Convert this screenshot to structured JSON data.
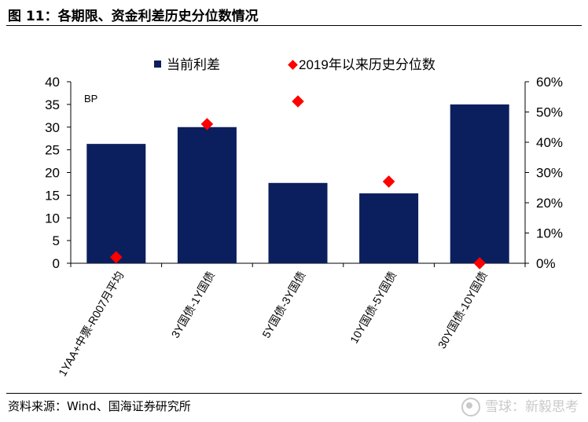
{
  "figure": {
    "title": "图 11：各期限、资金利差历史分位数情况",
    "source": "资料来源：Wind、国海证券研究所",
    "watermark": "雪球：新毅思考"
  },
  "colors": {
    "bar": "#0b1f5e",
    "marker": "#ff0000",
    "axis": "#000000"
  },
  "chart_data": {
    "type": "bar",
    "unit_label": "BP",
    "categories": [
      "1YAA+中票-R007月平均",
      "3Y国债-1Y国债",
      "5Y国债-3Y国债",
      "10Y国债-5Y国债",
      "30Y国债-10Y国债"
    ],
    "series": [
      {
        "name": "当前利差",
        "type": "bar",
        "axis": "left",
        "values": [
          26.3,
          30.0,
          17.7,
          15.4,
          35.0
        ]
      },
      {
        "name": "2019年以来历史分位数",
        "type": "scatter",
        "axis": "right",
        "values": [
          0.02,
          0.46,
          0.535,
          0.27,
          0.0
        ]
      }
    ],
    "y_left": {
      "ylim": [
        0,
        40
      ],
      "ticks": [
        0,
        5,
        10,
        15,
        20,
        25,
        30,
        35,
        40
      ],
      "tick_labels": [
        "0",
        "5",
        "10",
        "15",
        "20",
        "25",
        "30",
        "35",
        "40"
      ]
    },
    "y_right": {
      "ylim": [
        0,
        0.6
      ],
      "ticks": [
        0,
        0.1,
        0.2,
        0.3,
        0.4,
        0.5,
        0.6
      ],
      "tick_labels": [
        "0%",
        "10%",
        "20%",
        "30%",
        "40%",
        "50%",
        "60%"
      ]
    },
    "grid": false,
    "legend": "top-center"
  }
}
